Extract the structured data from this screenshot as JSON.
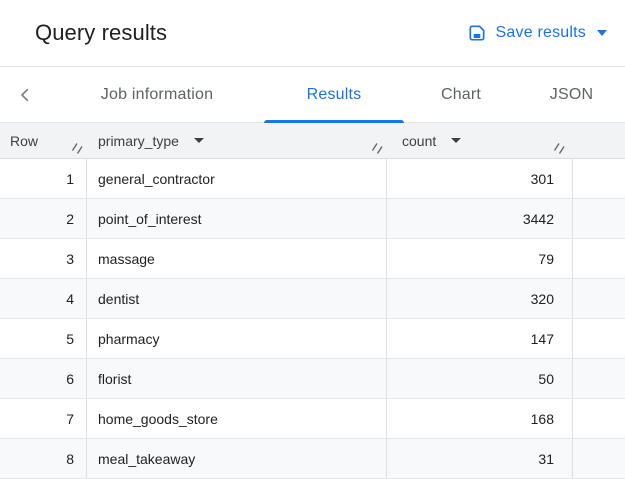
{
  "header": {
    "title": "Query results",
    "save_label": "Save results"
  },
  "tabs": {
    "items": [
      {
        "label": "Job information",
        "active": false
      },
      {
        "label": "Results",
        "active": true
      },
      {
        "label": "Chart",
        "active": false
      },
      {
        "label": "JSON",
        "active": false
      }
    ]
  },
  "table": {
    "columns": [
      {
        "label": "Row",
        "sortable": false
      },
      {
        "label": "primary_type",
        "sortable": true
      },
      {
        "label": "count",
        "sortable": true
      }
    ],
    "rows": [
      {
        "row": "1",
        "primary_type": "general_contractor",
        "count": "301"
      },
      {
        "row": "2",
        "primary_type": "point_of_interest",
        "count": "3442"
      },
      {
        "row": "3",
        "primary_type": "massage",
        "count": "79"
      },
      {
        "row": "4",
        "primary_type": "dentist",
        "count": "320"
      },
      {
        "row": "5",
        "primary_type": "pharmacy",
        "count": "147"
      },
      {
        "row": "6",
        "primary_type": "florist",
        "count": "50"
      },
      {
        "row": "7",
        "primary_type": "home_goods_store",
        "count": "168"
      },
      {
        "row": "8",
        "primary_type": "meal_takeaway",
        "count": "31"
      }
    ]
  },
  "icons": {
    "save": "floppy-disk",
    "caret_down": "▾",
    "chevron_left": "‹",
    "column_menu": "▾",
    "resize_handle": "//"
  },
  "colors": {
    "accent_blue": "#1a73e8",
    "header_bg": "#f1f3f4",
    "stripe_bg": "#f8f9fa",
    "text_primary": "#202124",
    "text_secondary": "#5f6368",
    "border": "#e0e0e0"
  }
}
